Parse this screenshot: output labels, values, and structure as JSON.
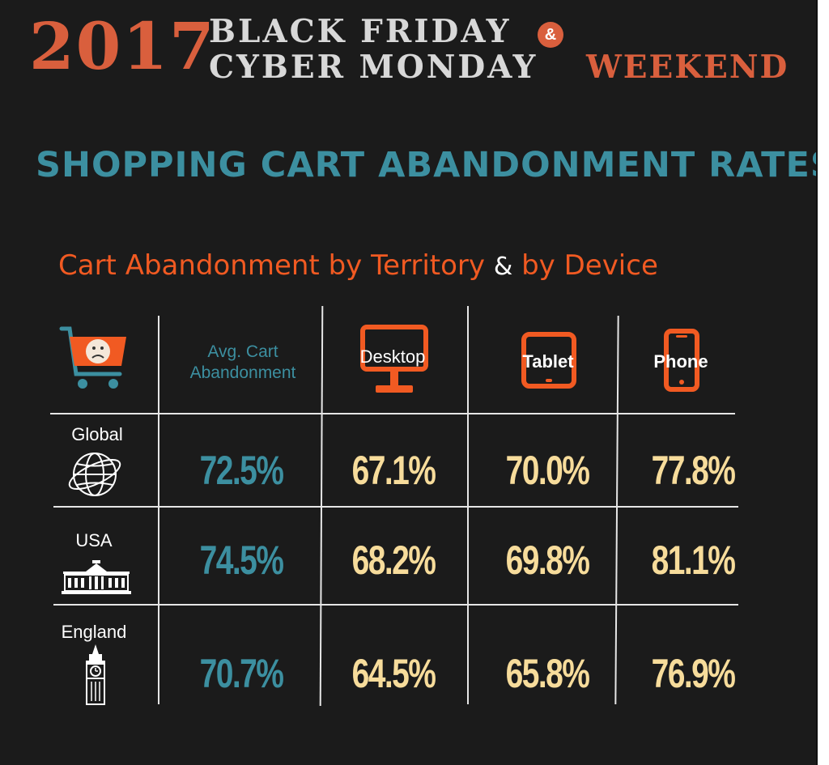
{
  "header": {
    "year": "2017",
    "line1": "BLACK FRIDAY",
    "ampersand": "&",
    "line2": "CYBER MONDAY",
    "weekend": "WEEKEND"
  },
  "title": "SHOPPING CART ABANDONMENT RATES",
  "subtitle": {
    "part1": "Cart Abandonment by Territory",
    "ampersand": "&",
    "part2": "by Device"
  },
  "colors": {
    "background": "#1b1b1b",
    "accent_orange": "#f15a22",
    "accent_teal": "#3c8fa0",
    "value_cream": "#f7dc9b"
  },
  "icons": {
    "corner": "sad-shopping-cart-icon",
    "desktop": "desktop-monitor-icon",
    "tablet": "tablet-icon",
    "phone": "phone-icon",
    "global": "globe-icon",
    "usa": "white-house-icon",
    "england": "big-ben-icon"
  },
  "chart_data": {
    "type": "table",
    "columns": [
      "Avg. Cart Abandonment",
      "Desktop",
      "Tablet",
      "Phone"
    ],
    "avg_header_lines": [
      "Avg. Cart",
      "Abandonment"
    ],
    "rows": [
      {
        "label": "Global",
        "values": [
          "72.5%",
          "67.1%",
          "70.0%",
          "77.8%"
        ]
      },
      {
        "label": "USA",
        "values": [
          "74.5%",
          "68.2%",
          "69.8%",
          "81.1%"
        ]
      },
      {
        "label": "England",
        "values": [
          "70.7%",
          "64.5%",
          "65.8%",
          "76.9%"
        ]
      }
    ]
  }
}
